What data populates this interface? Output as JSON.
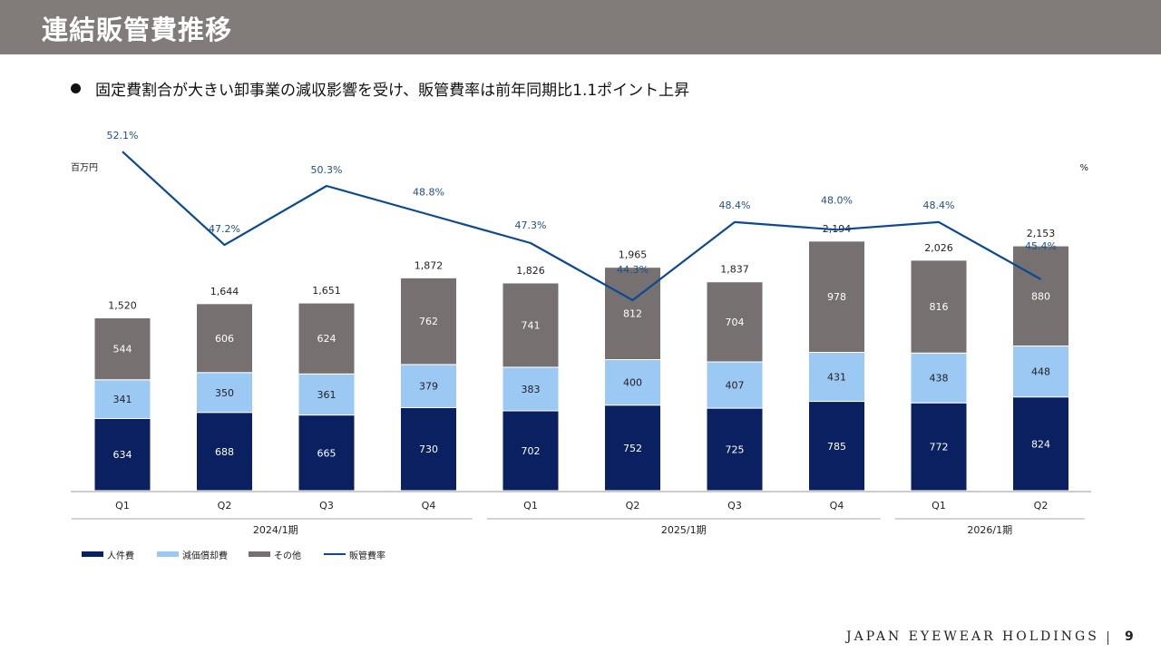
{
  "header": {
    "title": "連結販管費推移"
  },
  "summary": {
    "bullet": "固定費割合が大きい卸事業の減収影響を受け、販管費率は前年同期比1.1ポイント上昇"
  },
  "footer": {
    "brand": "JAPAN EYEWEAR HOLDINGS",
    "page_number": "9"
  },
  "colors": {
    "personnel": "#0b2060",
    "depreciation": "#9cc8f4",
    "other": "#767170",
    "sga_ratio_line": "#0b4a92"
  },
  "chart_data": {
    "type": "bar",
    "stacked": true,
    "left_axis_unit": "百万円",
    "right_axis_unit": "%",
    "categories": [
      "Q1",
      "Q2",
      "Q3",
      "Q4",
      "Q1",
      "Q2",
      "Q3",
      "Q4",
      "Q1",
      "Q2"
    ],
    "groups": [
      {
        "label": "2024/1期",
        "from": 0,
        "to": 3
      },
      {
        "label": "2025/1期",
        "from": 4,
        "to": 7
      },
      {
        "label": "2026/1期",
        "from": 8,
        "to": 9
      }
    ],
    "series": [
      {
        "name": "人件費",
        "key": "personnel",
        "values": [
          634,
          688,
          665,
          730,
          702,
          752,
          725,
          785,
          772,
          824
        ]
      },
      {
        "name": "減価償却費",
        "key": "depreciation",
        "values": [
          341,
          350,
          361,
          379,
          383,
          400,
          407,
          431,
          438,
          448
        ]
      },
      {
        "name": "その他",
        "key": "other",
        "values": [
          544,
          606,
          624,
          762,
          741,
          812,
          704,
          978,
          816,
          880
        ]
      }
    ],
    "totals": [
      "1,520",
      "1,644",
      "1,651",
      "1,872",
      "1,826",
      "1,965",
      "1,837",
      "2,194",
      "2,026",
      "2,153"
    ],
    "line_series": {
      "name": "販管費率",
      "key": "sga_ratio_line",
      "values": [
        52.1,
        47.2,
        50.3,
        48.8,
        47.3,
        44.3,
        48.4,
        48.0,
        48.4,
        45.4
      ],
      "labels": [
        "52.1%",
        "47.2%",
        "50.3%",
        "48.8%",
        "47.3%",
        "44.3%",
        "48.4%",
        "48.0%",
        "48.4%",
        "45.4%"
      ]
    },
    "legend_order": [
      "人件費",
      "減価償却費",
      "その他",
      "販管費率"
    ],
    "legend_position": "bottom-left",
    "ylim": [
      0,
      2400
    ],
    "y2lim": [
      20,
      56
    ],
    "grid": false
  }
}
